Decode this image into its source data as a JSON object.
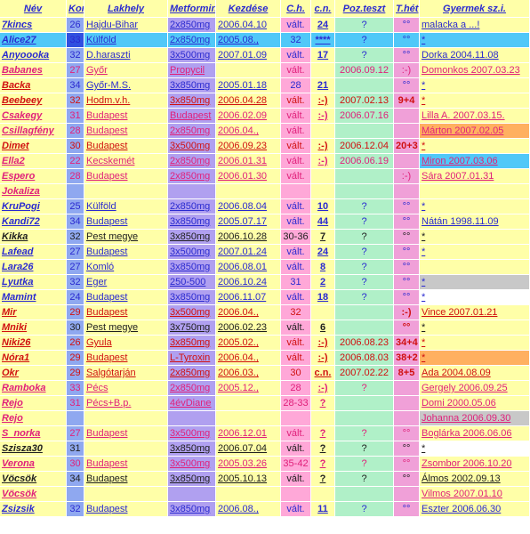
{
  "colors": {
    "blue_text": "#2a2ad0",
    "pink_text": "#e0207a",
    "red_text": "#d01010",
    "dark_text": "#202020",
    "col_bg": [
      "#ffffa8",
      "#8fa8f0",
      "#ffffa8",
      "#b0a0f0",
      "#ffffa8",
      "#ffa8d8",
      "#ffffa8",
      "#b0f0c8",
      "#f0a0d8",
      "#ffffa8"
    ]
  },
  "headers": [
    "Név",
    "Kor",
    "Lakhely",
    "Metformin",
    "Kezdése",
    "C.h.",
    "c.n.",
    "Poz.teszt",
    "T.hét",
    "Gyermek sz.i."
  ],
  "rows": [
    {
      "name": "7kincs",
      "kor": "26",
      "lak": "Hajdu-Bihar",
      "met": "2x850mg",
      "kez": "2006.04.10",
      "ch": "vált.",
      "cn": "24",
      "poz": "?",
      "thet": "°°",
      "gy": "malacka a ...!",
      "t": "b",
      "bg": {}
    },
    {
      "name": "Alice27",
      "kor": "33",
      "lak": "Külföld",
      "met": "2x850mg",
      "kez": "2005.08.,",
      "ch": "32",
      "cn": "****",
      "poz": "?",
      "thet": "°°",
      "gy": "*",
      "t": "b",
      "bg": {
        "all": "#50c8f8",
        "1": "#3050e0"
      }
    },
    {
      "name": "Anyoooka",
      "kor": "32",
      "lak": "D.haraszti",
      "met": "3x500mg",
      "kez": "2007.01.09",
      "ch": "vált.",
      "cn": "17",
      "poz": "?",
      "thet": "°°",
      "gy": "Dorka     2004.11.08",
      "t": "b",
      "bg": {}
    },
    {
      "name": "Babanes",
      "kor": "27",
      "lak": "Győr",
      "met": "Propycil",
      "kez": "",
      "ch": "vált.",
      "cn": "",
      "poz": "2006.09.12",
      "thet": ":-)",
      "gy": "Domonkos 2007.03.23",
      "t": "p",
      "bg": {}
    },
    {
      "name": "Backa",
      "kor": "34",
      "lak": "Győr-M.S.",
      "met": "3x850mg",
      "kez": "2005.01.18",
      "ch": "28",
      "cn": "21",
      "poz": "",
      "thet": "°°",
      "gy": "*",
      "t": "pd",
      "bg": {}
    },
    {
      "name": "Beebeey",
      "kor": "32",
      "lak": "Hodm.v.h.",
      "met": "3x850mg",
      "kez": "2006.04.28",
      "ch": "vált.",
      "cn": ":-)",
      "poz": "2007.02.13",
      "thet": "9+4",
      "gy": "*",
      "t": "r",
      "bg": {}
    },
    {
      "name": "Csakegy",
      "kor": "31",
      "lak": "Budapest",
      "met": "Budapest",
      "kez": "2006.02.09",
      "ch": "vált.",
      "cn": ":-)",
      "poz": "2006.07.16",
      "thet": "",
      "gy": "Lilla A.    2007.03.15.",
      "t": "p",
      "bg": {}
    },
    {
      "name": "Csillagfény",
      "kor": "28",
      "lak": "Budapest",
      "met": "2x850mg",
      "kez": "2006.04.,",
      "ch": "vált.",
      "cn": "",
      "poz": "",
      "thet": "",
      "gy": "Márton     2007.02.05",
      "t": "p",
      "bg": {
        "9": "#ffb060"
      }
    },
    {
      "name": "Dimet",
      "kor": "30",
      "lak": "Budapest",
      "met": "3x500mg",
      "kez": "2006.09.23",
      "ch": "vált.",
      "cn": ":-)",
      "poz": "2006.12.04",
      "thet": "20+3",
      "gy": "*",
      "t": "rd",
      "bg": {}
    },
    {
      "name": "Ella2",
      "kor": "22",
      "lak": "Kecskemét",
      "met": "2x850mg",
      "kez": "2006.01.31",
      "ch": "vált.",
      "cn": ":-)",
      "poz": "2006.06.19",
      "thet": "",
      "gy": "Miron      2007.03.06",
      "t": "p",
      "bg": {
        "9": "#50c8f8"
      }
    },
    {
      "name": "Espero",
      "kor": "28",
      "lak": "Budapest",
      "met": "2x850mg",
      "kez": "2006.01.30",
      "ch": "vált.",
      "cn": "",
      "poz": "",
      "thet": ":-)",
      "gy": "Sára       2007.01.31",
      "t": "p",
      "bg": {}
    },
    {
      "name": "Jokaliza",
      "kor": "",
      "lak": "",
      "met": "",
      "kez": "",
      "ch": "",
      "cn": "",
      "poz": "",
      "thet": "",
      "gy": "",
      "t": "p",
      "bg": {}
    },
    {
      "name": "KruPogi",
      "kor": "25",
      "lak": "Külföld",
      "met": "2x850mg",
      "kez": "2006.08.04",
      "ch": "vált.",
      "cn": "10",
      "poz": "?",
      "thet": "°°",
      "gy": "*",
      "t": "b",
      "bg": {}
    },
    {
      "name": "Kandi72",
      "kor": "34",
      "lak": "Budapest",
      "met": "3x850mg",
      "kez": "2005.07.17",
      "ch": "vált.",
      "cn": "44",
      "poz": "?",
      "thet": "°°",
      "gy": "Nátán       1998.11.09",
      "t": "b",
      "bg": {}
    },
    {
      "name": "Kikka",
      "kor": "32",
      "lak": "Pest megye",
      "met": "3x850mg",
      "kez": "2006.10.28",
      "ch": "30-36",
      "cn": "7",
      "poz": "?",
      "thet": "°°",
      "gy": "*",
      "t": "d",
      "bg": {}
    },
    {
      "name": "Lafead",
      "kor": "27",
      "lak": "Budapest",
      "met": "3x500mg",
      "kez": "2007.01.24",
      "ch": "vált.",
      "cn": "24",
      "poz": "?",
      "thet": "°°",
      "gy": "*",
      "t": "b",
      "bg": {}
    },
    {
      "name": "Lara26",
      "kor": "27",
      "lak": "Komló",
      "met": "3x850mg",
      "kez": "2006.08.01",
      "ch": "vált.",
      "cn": "8",
      "poz": "?",
      "thet": "°°",
      "gy": "",
      "t": "b",
      "bg": {}
    },
    {
      "name": "Lyutka",
      "kor": "32",
      "lak": "Eger",
      "met": "250-500",
      "kez": "2006.10.24",
      "ch": "31",
      "cn": "2",
      "poz": "?",
      "thet": "°°",
      "gy": "*",
      "t": "b",
      "bg": {
        "9": "#c8c8c8"
      }
    },
    {
      "name": "Mamint",
      "kor": "24",
      "lak": "Budapest",
      "met": "3x850mg",
      "kez": "2006.11.07",
      "ch": "vált.",
      "cn": "18",
      "poz": "?",
      "thet": "°°",
      "gy": "*",
      "t": "b",
      "bg": {
        "9": "#ffffff"
      }
    },
    {
      "name": "Mir",
      "kor": "29",
      "lak": "Budapest",
      "met": "3x500mg",
      "kez": "2006.04.,",
      "ch": "32",
      "cn": "",
      "poz": "",
      "thet": ":-)",
      "gy": "Vince     2007.01.21",
      "t": "r",
      "bg": {}
    },
    {
      "name": "Mniki",
      "kor": "30",
      "lak": "Pest megye",
      "met": "3x750mg",
      "kez": "2006.02.23",
      "ch": "vált.",
      "cn": "6",
      "poz": "",
      "thet": "°°",
      "gy": "*",
      "t": "dr",
      "bg": {}
    },
    {
      "name": "Niki26",
      "kor": "26",
      "lak": "Gyula",
      "met": "3x850mg",
      "kez": "2005.02.,",
      "ch": "vált.",
      "cn": ":-)",
      "poz": "2006.08.23",
      "thet": "34+4",
      "gy": "*",
      "t": "r",
      "bg": {}
    },
    {
      "name": "Nóra1",
      "kor": "29",
      "lak": "Budapest",
      "met": "L-Tyroxin",
      "kez": "2006.04.,",
      "ch": "vált.",
      "cn": ":-)",
      "poz": "2006.08.03",
      "thet": "38+2",
      "gy": "*",
      "t": "r",
      "bg": {
        "9": "#ffb060"
      }
    },
    {
      "name": "Okr",
      "kor": "29",
      "lak": "Salgótarján",
      "met": "2x850mg",
      "kez": "2006.03.,",
      "ch": "30",
      "cn": "c.n.",
      "poz": "2007.02.22",
      "thet": "8+5",
      "gy": "Ada        2004.08.09",
      "t": "rd",
      "bg": {}
    },
    {
      "name": "Ramboka",
      "kor": "33",
      "lak": "Pécs",
      "met": "2x850mg",
      "kez": "2005.12.,",
      "ch": "28",
      "cn": ":-)",
      "poz": "?",
      "thet": "",
      "gy": "Gergely   2006.09.25",
      "t": "p",
      "bg": {}
    },
    {
      "name": "Rejo",
      "kor": "31",
      "lak": "Pécs+B.p.",
      "met": "4évDiane",
      "kez": "",
      "ch": "28-33",
      "cn": "?",
      "poz": "",
      "thet": "",
      "gy": "Domi       2000.05.06",
      "t": "p",
      "bg": {}
    },
    {
      "name": "Rejo",
      "kor": "",
      "lak": "",
      "met": "",
      "kez": "",
      "ch": "",
      "cn": "",
      "poz": "",
      "thet": "",
      "gy": "Johanna   2006.09.30",
      "t": "p",
      "bg": {
        "9": "#c8c8c8"
      }
    },
    {
      "name": "S_norka",
      "kor": "27",
      "lak": "Budapest",
      "met": "3x500mg",
      "kez": "2006.12.01",
      "ch": "vált.",
      "cn": "?",
      "poz": "?",
      "thet": "°°",
      "gy": "Boglárka  2006.06.06",
      "t": "p",
      "bg": {}
    },
    {
      "name": "Szisza30",
      "kor": "31",
      "lak": "",
      "met": "3x850mg",
      "kez": "2006.07.04",
      "ch": "vált.",
      "cn": "?",
      "poz": "?",
      "thet": "°°",
      "gy": "*",
      "t": "d",
      "bg": {
        "9": "#ffffff"
      }
    },
    {
      "name": "Verona",
      "kor": "30",
      "lak": "Budapest",
      "met": "3x500mg",
      "kez": "2005.03.26",
      "ch": "35-42",
      "cn": "?",
      "poz": "?",
      "thet": "°°",
      "gy": "Zsombor   2006.10.20",
      "t": "p",
      "bg": {}
    },
    {
      "name": "Vöcsök",
      "kor": "34",
      "lak": "Budapest",
      "met": "3x850mg",
      "kez": "2005.10.13",
      "ch": "vált.",
      "cn": "?",
      "poz": "?",
      "thet": "°°",
      "gy": "Álmos      2002.09.13",
      "t": "d",
      "bg": {}
    },
    {
      "name": "Vöcsök",
      "kor": "",
      "lak": "",
      "met": "",
      "kez": "",
      "ch": "",
      "cn": "",
      "poz": "",
      "thet": "",
      "gy": "Vilmos     2007.01.10",
      "t": "p",
      "bg": {}
    },
    {
      "name": "Zsizsik",
      "kor": "32",
      "lak": "Budapest",
      "met": "3x850mg",
      "kez": "2006.08.,",
      "ch": "vált.",
      "cn": "11",
      "poz": "?",
      "thet": "°°",
      "gy": "Eszter     2006.06.30",
      "t": "b",
      "bg": {}
    }
  ]
}
